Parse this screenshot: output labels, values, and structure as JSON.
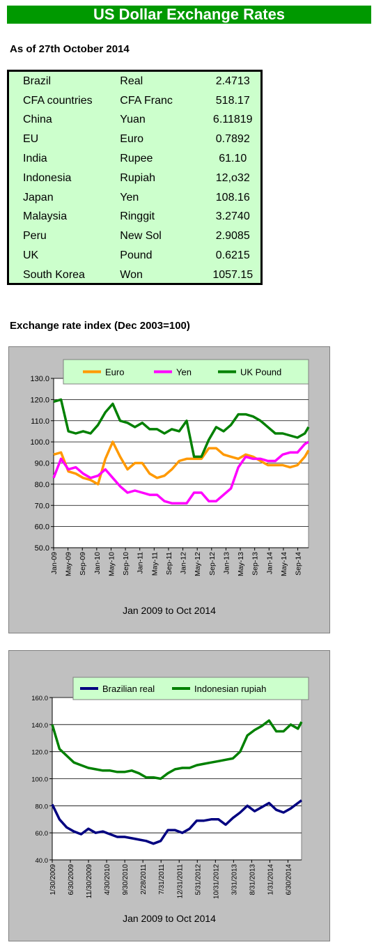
{
  "header": {
    "title": "US Dollar Exchange Rates"
  },
  "as_of": "As of 27th October 2014",
  "rates": [
    {
      "country": "Brazil",
      "currency": "Real",
      "rate": "2.4713"
    },
    {
      "country": "CFA countries",
      "currency": "CFA Franc",
      "rate": "518.17"
    },
    {
      "country": "China",
      "currency": "Yuan",
      "rate": "6.11819"
    },
    {
      "country": "EU",
      "currency": "Euro",
      "rate": "0.7892"
    },
    {
      "country": "India",
      "currency": "Rupee",
      "rate": "61.10"
    },
    {
      "country": "Indonesia",
      "currency": "Rupiah",
      "rate": "12,o32"
    },
    {
      "country": "Japan",
      "currency": "Yen",
      "rate": "108.16"
    },
    {
      "country": "Malaysia",
      "currency": "Ringgit",
      "rate": "3.2740"
    },
    {
      "country": "Peru",
      "currency": "New Sol",
      "rate": "2.9085"
    },
    {
      "country": "UK",
      "currency": "Pound",
      "rate": "0.6215"
    },
    {
      "country": "South Korea",
      "currency": "Won",
      "rate": "1057.15"
    }
  ],
  "index_section_title": "Exchange rate index (Dec 2003=100)",
  "chart_data": [
    {
      "type": "line",
      "title": "",
      "xlabel": "Jan 2009 to Oct 2014",
      "ylabel": "",
      "ylim": [
        50,
        130
      ],
      "yticks": [
        "50.0",
        "60.0",
        "70.0",
        "80.0",
        "90.0",
        "100.0",
        "110.0",
        "120.0",
        "130.0"
      ],
      "xticks": [
        "Jan-09",
        "May-09",
        "Sep-09",
        "Jan-10",
        "May-10",
        "Sep-10",
        "Jan-11",
        "May-11",
        "Sep-11",
        "Jan-12",
        "May-12",
        "Sep-12",
        "Jan-13",
        "May-13",
        "Sep-13",
        "Jan-14",
        "May-14",
        "Sep-14"
      ],
      "grid": true,
      "legend": "top",
      "x": [
        "2009-01",
        "2009-03",
        "2009-05",
        "2009-07",
        "2009-09",
        "2009-11",
        "2010-01",
        "2010-03",
        "2010-05",
        "2010-07",
        "2010-09",
        "2010-11",
        "2011-01",
        "2011-03",
        "2011-05",
        "2011-07",
        "2011-09",
        "2011-11",
        "2012-01",
        "2012-03",
        "2012-05",
        "2012-07",
        "2012-09",
        "2012-11",
        "2013-01",
        "2013-03",
        "2013-05",
        "2013-07",
        "2013-09",
        "2013-11",
        "2014-01",
        "2014-03",
        "2014-05",
        "2014-07",
        "2014-09",
        "2014-10"
      ],
      "series": [
        {
          "name": "Euro",
          "color": "#ff9900",
          "values": [
            94,
            95,
            86,
            85,
            83,
            82,
            80,
            92,
            100,
            93,
            87,
            90,
            90,
            85,
            83,
            84,
            87,
            91,
            92,
            92,
            92,
            97,
            97,
            94,
            93,
            92,
            94,
            93,
            91,
            89,
            89,
            89,
            88,
            89,
            93,
            96
          ]
        },
        {
          "name": "Yen",
          "color": "#ff00ff",
          "values": [
            83,
            92,
            87,
            88,
            85,
            83,
            84,
            87,
            83,
            79,
            76,
            77,
            76,
            75,
            75,
            72,
            71,
            71,
            71,
            76,
            76,
            72,
            72,
            75,
            78,
            88,
            93,
            92,
            92,
            91,
            91,
            94,
            95,
            95,
            99,
            100
          ]
        },
        {
          "name": "UK Pound",
          "color": "#008000",
          "values": [
            119,
            120,
            105,
            104,
            105,
            104,
            108,
            114,
            118,
            110,
            109,
            107,
            109,
            106,
            106,
            104,
            106,
            105,
            110,
            93,
            93,
            101,
            107,
            105,
            108,
            113,
            113,
            112,
            110,
            107,
            104,
            104,
            103,
            102,
            104,
            107
          ]
        }
      ]
    },
    {
      "type": "line",
      "title": "",
      "xlabel": "Jan 2009 to Oct 2014",
      "ylabel": "",
      "ylim": [
        40,
        160
      ],
      "yticks": [
        "40.0",
        "60.0",
        "80.0",
        "100.0",
        "120.0",
        "140.0",
        "160.0"
      ],
      "xticks": [
        "1/30/2009",
        "6/30/2009",
        "11/30/2009",
        "4/30/2010",
        "9/30/2010",
        "2/28/2011",
        "7/31/2011",
        "12/31/2011",
        "5/31/2012",
        "10/31/2012",
        "3/31/2013",
        "8/31/2013",
        "1/31/2014",
        "6/30/2014"
      ],
      "grid": true,
      "legend": "top",
      "x": [
        "2009-01",
        "2009-03",
        "2009-05",
        "2009-07",
        "2009-09",
        "2009-11",
        "2010-01",
        "2010-03",
        "2010-05",
        "2010-07",
        "2010-09",
        "2010-11",
        "2011-01",
        "2011-03",
        "2011-05",
        "2011-07",
        "2011-09",
        "2011-11",
        "2012-01",
        "2012-03",
        "2012-05",
        "2012-07",
        "2012-09",
        "2012-11",
        "2013-01",
        "2013-03",
        "2013-05",
        "2013-07",
        "2013-09",
        "2013-11",
        "2014-01",
        "2014-03",
        "2014-05",
        "2014-07",
        "2014-09",
        "2014-10"
      ],
      "series": [
        {
          "name": "Brazilian real",
          "color": "#000080",
          "values": [
            81,
            70,
            64,
            61,
            59,
            63,
            60,
            61,
            59,
            57,
            57,
            56,
            55,
            54,
            52,
            54,
            62,
            62,
            60,
            63,
            69,
            69,
            70,
            70,
            66,
            71,
            75,
            80,
            76,
            79,
            82,
            77,
            75,
            78,
            82,
            84
          ]
        },
        {
          "name": "Indonesian rupiah",
          "color": "#008000",
          "values": [
            140,
            122,
            117,
            112,
            110,
            108,
            107,
            106,
            106,
            105,
            105,
            106,
            104,
            101,
            101,
            100,
            104,
            107,
            108,
            108,
            110,
            111,
            112,
            113,
            114,
            115,
            120,
            132,
            136,
            139,
            143,
            135,
            135,
            140,
            137,
            142
          ]
        }
      ]
    }
  ]
}
